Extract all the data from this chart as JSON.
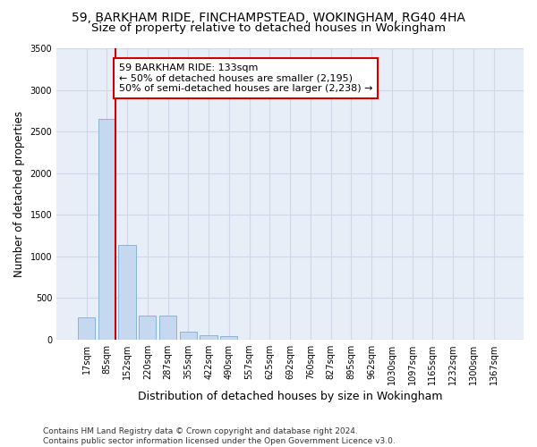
{
  "title1": "59, BARKHAM RIDE, FINCHAMPSTEAD, WOKINGHAM, RG40 4HA",
  "title2": "Size of property relative to detached houses in Wokingham",
  "xlabel": "Distribution of detached houses by size in Wokingham",
  "ylabel": "Number of detached properties",
  "bar_color": "#c5d8f0",
  "bar_edge_color": "#7aadd4",
  "background_color": "#e8eef8",
  "grid_color": "#d0d8e8",
  "annotation_text": "59 BARKHAM RIDE: 133sqm\n← 50% of detached houses are smaller (2,195)\n50% of semi-detached houses are larger (2,238) →",
  "vline_color": "#cc0000",
  "annotation_box_color": "#ffffff",
  "annotation_box_edge": "#cc0000",
  "categories": [
    "17sqm",
    "85sqm",
    "152sqm",
    "220sqm",
    "287sqm",
    "355sqm",
    "422sqm",
    "490sqm",
    "557sqm",
    "625sqm",
    "692sqm",
    "760sqm",
    "827sqm",
    "895sqm",
    "962sqm",
    "1030sqm",
    "1097sqm",
    "1165sqm",
    "1232sqm",
    "1300sqm",
    "1367sqm"
  ],
  "values": [
    270,
    2650,
    1140,
    285,
    285,
    90,
    55,
    35,
    0,
    0,
    0,
    0,
    0,
    0,
    0,
    0,
    0,
    0,
    0,
    0,
    0
  ],
  "ylim": [
    0,
    3500
  ],
  "yticks": [
    0,
    500,
    1000,
    1500,
    2000,
    2500,
    3000,
    3500
  ],
  "footer": "Contains HM Land Registry data © Crown copyright and database right 2024.\nContains public sector information licensed under the Open Government Licence v3.0.",
  "title_fontsize": 10,
  "subtitle_fontsize": 9.5,
  "tick_fontsize": 7,
  "ylabel_fontsize": 8.5,
  "xlabel_fontsize": 9,
  "footer_fontsize": 6.5,
  "annot_fontsize": 8
}
